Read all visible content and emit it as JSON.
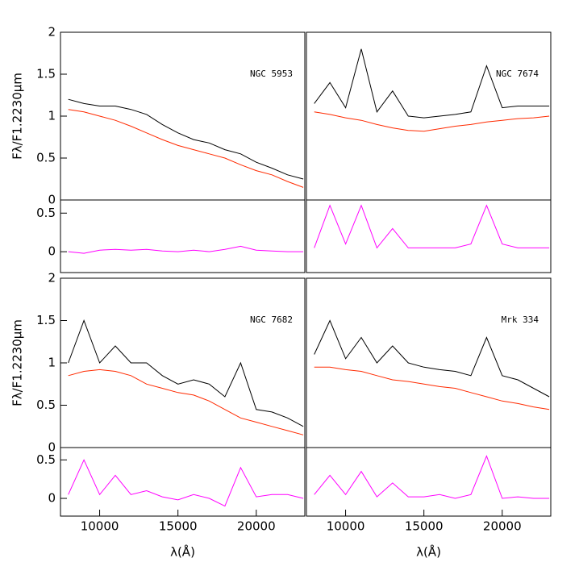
{
  "chart_data": [
    {
      "type": "line",
      "label": "NGC 5953",
      "ylabel": "Fλ/F1.2230μm",
      "x": [
        8000,
        9000,
        10000,
        11000,
        12000,
        13000,
        14000,
        15000,
        16000,
        17000,
        18000,
        19000,
        20000,
        21000,
        22000,
        23000
      ],
      "xlim": [
        7500,
        23100
      ],
      "ylim": [
        0,
        2
      ],
      "yticks": [
        0,
        0.5,
        1,
        1.5,
        2
      ],
      "series": [
        {
          "color": "#000000",
          "values": [
            1.2,
            1.15,
            1.12,
            1.12,
            1.08,
            1.02,
            0.9,
            0.8,
            0.72,
            0.68,
            0.6,
            0.55,
            0.45,
            0.38,
            0.3,
            0.25
          ]
        },
        {
          "color": "#ff2a00",
          "values": [
            1.08,
            1.05,
            1.0,
            0.95,
            0.88,
            0.8,
            0.72,
            0.65,
            0.6,
            0.55,
            0.5,
            0.42,
            0.35,
            0.3,
            0.22,
            0.15
          ]
        }
      ]
    },
    {
      "type": "line",
      "x": [
        8000,
        9000,
        10000,
        11000,
        12000,
        13000,
        14000,
        15000,
        16000,
        17000,
        18000,
        19000,
        20000,
        21000,
        22000,
        23000
      ],
      "xlim": [
        7500,
        23100
      ],
      "ylim": [
        -0.27,
        0.67
      ],
      "yticks": [
        0,
        0.5
      ],
      "series": [
        {
          "color": "#ff00ff",
          "values": [
            0.0,
            -0.02,
            0.02,
            0.03,
            0.02,
            0.03,
            0.01,
            0.0,
            0.02,
            0.0,
            0.03,
            0.07,
            0.02,
            0.01,
            0.0,
            0.0
          ]
        }
      ]
    },
    {
      "type": "line",
      "label": "NGC 7674",
      "x": [
        8000,
        9000,
        10000,
        11000,
        12000,
        13000,
        14000,
        15000,
        16000,
        17000,
        18000,
        19000,
        20000,
        21000,
        22000,
        23000
      ],
      "xlim": [
        7500,
        23100
      ],
      "ylim": [
        0,
        2
      ],
      "series": [
        {
          "color": "#000000",
          "values": [
            1.15,
            1.4,
            1.1,
            1.8,
            1.05,
            1.3,
            1.0,
            0.98,
            1.0,
            1.02,
            1.05,
            1.6,
            1.1,
            1.12,
            1.12,
            1.12
          ]
        },
        {
          "color": "#ff2a00",
          "values": [
            1.05,
            1.02,
            0.98,
            0.95,
            0.9,
            0.86,
            0.83,
            0.82,
            0.85,
            0.88,
            0.9,
            0.93,
            0.95,
            0.97,
            0.98,
            1.0
          ]
        }
      ]
    },
    {
      "type": "line",
      "x": [
        8000,
        9000,
        10000,
        11000,
        12000,
        13000,
        14000,
        15000,
        16000,
        17000,
        18000,
        19000,
        20000,
        21000,
        22000,
        23000
      ],
      "xlim": [
        7500,
        23100
      ],
      "ylim": [
        -0.27,
        0.67
      ],
      "series": [
        {
          "color": "#ff00ff",
          "values": [
            0.05,
            0.6,
            0.1,
            0.6,
            0.05,
            0.3,
            0.05,
            0.05,
            0.05,
            0.05,
            0.1,
            0.6,
            0.1,
            0.05,
            0.05,
            0.05
          ]
        }
      ]
    },
    {
      "type": "line",
      "label": "NGC 7682",
      "ylabel": "Fλ/F1.2230μm",
      "x": [
        8000,
        9000,
        10000,
        11000,
        12000,
        13000,
        14000,
        15000,
        16000,
        17000,
        18000,
        19000,
        20000,
        21000,
        22000,
        23000
      ],
      "xlim": [
        7500,
        23100
      ],
      "ylim": [
        0,
        2
      ],
      "yticks": [
        0,
        0.5,
        1,
        1.5,
        2
      ],
      "series": [
        {
          "color": "#000000",
          "values": [
            1.0,
            1.5,
            1.0,
            1.2,
            1.0,
            1.0,
            0.85,
            0.75,
            0.8,
            0.75,
            0.6,
            1.0,
            0.45,
            0.42,
            0.35,
            0.25
          ]
        },
        {
          "color": "#ff2a00",
          "values": [
            0.85,
            0.9,
            0.92,
            0.9,
            0.85,
            0.75,
            0.7,
            0.65,
            0.62,
            0.55,
            0.45,
            0.35,
            0.3,
            0.25,
            0.2,
            0.15
          ]
        }
      ]
    },
    {
      "type": "line",
      "xlabel": "λ(Å)",
      "x": [
        8000,
        9000,
        10000,
        11000,
        12000,
        13000,
        14000,
        15000,
        16000,
        17000,
        18000,
        19000,
        20000,
        21000,
        22000,
        23000
      ],
      "xlim": [
        7500,
        23100
      ],
      "ylim": [
        -0.23,
        0.66
      ],
      "yticks": [
        0,
        0.5
      ],
      "xticks": [
        10000,
        15000,
        20000
      ],
      "series": [
        {
          "color": "#ff00ff",
          "values": [
            0.05,
            0.5,
            0.05,
            0.3,
            0.05,
            0.1,
            0.02,
            -0.02,
            0.05,
            0.0,
            -0.1,
            0.4,
            0.02,
            0.05,
            0.05,
            0.0
          ]
        }
      ]
    },
    {
      "type": "line",
      "label": "Mrk 334",
      "x": [
        8000,
        9000,
        10000,
        11000,
        12000,
        13000,
        14000,
        15000,
        16000,
        17000,
        18000,
        19000,
        20000,
        21000,
        22000,
        23000
      ],
      "xlim": [
        7500,
        23100
      ],
      "ylim": [
        0,
        2
      ],
      "series": [
        {
          "color": "#000000",
          "values": [
            1.1,
            1.5,
            1.05,
            1.3,
            1.0,
            1.2,
            1.0,
            0.95,
            0.92,
            0.9,
            0.85,
            1.3,
            0.85,
            0.8,
            0.7,
            0.6
          ]
        },
        {
          "color": "#ff2a00",
          "values": [
            0.95,
            0.95,
            0.92,
            0.9,
            0.85,
            0.8,
            0.78,
            0.75,
            0.72,
            0.7,
            0.65,
            0.6,
            0.55,
            0.52,
            0.48,
            0.45
          ]
        }
      ]
    },
    {
      "type": "line",
      "xlabel": "λ(Å)",
      "x": [
        8000,
        9000,
        10000,
        11000,
        12000,
        13000,
        14000,
        15000,
        16000,
        17000,
        18000,
        19000,
        20000,
        21000,
        22000,
        23000
      ],
      "xlim": [
        7500,
        23100
      ],
      "ylim": [
        -0.23,
        0.66
      ],
      "xticks": [
        10000,
        15000,
        20000
      ],
      "series": [
        {
          "color": "#ff00ff",
          "values": [
            0.05,
            0.3,
            0.05,
            0.35,
            0.02,
            0.2,
            0.02,
            0.02,
            0.05,
            0.0,
            0.05,
            0.55,
            0.0,
            0.02,
            0.0,
            0.0
          ]
        }
      ]
    }
  ]
}
